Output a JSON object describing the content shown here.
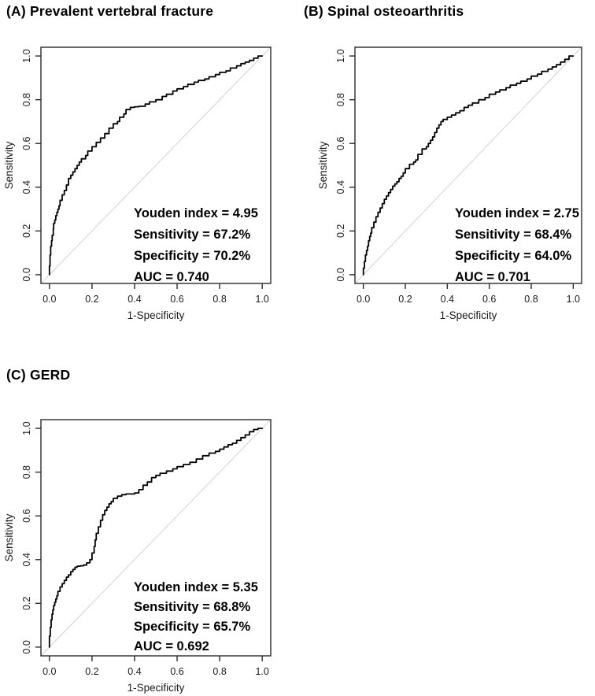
{
  "figure": {
    "background": "#ffffff"
  },
  "style": {
    "curve_color": "#000000",
    "diagonal_color": "#d2d2d2",
    "axis_color": "#2b2b2b",
    "text_color": "#1a1a1a",
    "tick_font_size": 12.5,
    "axis_label_font_size": 13.5
  },
  "chart_data": [
    {
      "id": "A",
      "type": "line",
      "title": "(A) Prevalent vertebral fracture",
      "xlabel": "1-Specificity",
      "ylabel": "Sensitivity",
      "xlim": [
        0,
        1
      ],
      "ylim": [
        0,
        1
      ],
      "xticks": [
        0.0,
        0.2,
        0.4,
        0.6,
        0.8,
        1.0
      ],
      "yticks": [
        0.0,
        0.2,
        0.4,
        0.6,
        0.8,
        1.0
      ],
      "grid": false,
      "diagonal_reference": true,
      "stats": {
        "youden_index": "4.95",
        "sensitivity": "67.2%",
        "specificity": "70.2%",
        "auc": "0.740"
      },
      "annotation_lines": [
        "Youden index = 4.95",
        "Sensitivity = 67.2%",
        "Specificity = 70.2%",
        "AUC = 0.740"
      ],
      "series": [
        {
          "name": "ROC curve",
          "color": "#000000",
          "points": [
            [
              0,
              0
            ],
            [
              0.003,
              0.04
            ],
            [
              0.006,
              0.09
            ],
            [
              0.01,
              0.13
            ],
            [
              0.013,
              0.155
            ],
            [
              0.018,
              0.18
            ],
            [
              0.02,
              0.21
            ],
            [
              0.025,
              0.235
            ],
            [
              0.03,
              0.25
            ],
            [
              0.035,
              0.27
            ],
            [
              0.04,
              0.285
            ],
            [
              0.045,
              0.3
            ],
            [
              0.05,
              0.315
            ],
            [
              0.06,
              0.34
            ],
            [
              0.07,
              0.365
            ],
            [
              0.08,
              0.385
            ],
            [
              0.09,
              0.41
            ],
            [
              0.1,
              0.44
            ],
            [
              0.11,
              0.455
            ],
            [
              0.12,
              0.47
            ],
            [
              0.13,
              0.485
            ],
            [
              0.14,
              0.5
            ],
            [
              0.15,
              0.515
            ],
            [
              0.17,
              0.53
            ],
            [
              0.18,
              0.545
            ],
            [
              0.2,
              0.565
            ],
            [
              0.22,
              0.585
            ],
            [
              0.24,
              0.605
            ],
            [
              0.26,
              0.625
            ],
            [
              0.28,
              0.645
            ],
            [
              0.3,
              0.67
            ],
            [
              0.32,
              0.69
            ],
            [
              0.33,
              0.7
            ],
            [
              0.35,
              0.72
            ],
            [
              0.36,
              0.735
            ],
            [
              0.38,
              0.755
            ],
            [
              0.4,
              0.765
            ],
            [
              0.42,
              0.768
            ],
            [
              0.45,
              0.77
            ],
            [
              0.47,
              0.78
            ],
            [
              0.5,
              0.79
            ],
            [
              0.53,
              0.8
            ],
            [
              0.55,
              0.815
            ],
            [
              0.58,
              0.825
            ],
            [
              0.6,
              0.84
            ],
            [
              0.63,
              0.85
            ],
            [
              0.65,
              0.86
            ],
            [
              0.68,
              0.87
            ],
            [
              0.7,
              0.88
            ],
            [
              0.73,
              0.888
            ],
            [
              0.75,
              0.895
            ],
            [
              0.78,
              0.905
            ],
            [
              0.8,
              0.915
            ],
            [
              0.83,
              0.925
            ],
            [
              0.85,
              0.932
            ],
            [
              0.88,
              0.945
            ],
            [
              0.9,
              0.955
            ],
            [
              0.92,
              0.965
            ],
            [
              0.94,
              0.972
            ],
            [
              0.96,
              0.98
            ],
            [
              0.98,
              0.99
            ],
            [
              1,
              1
            ]
          ]
        }
      ]
    },
    {
      "id": "B",
      "type": "line",
      "title": "(B) Spinal osteoarthritis",
      "xlabel": "1-Specificity",
      "ylabel": "Sensitivity",
      "xlim": [
        0,
        1
      ],
      "ylim": [
        0,
        1
      ],
      "xticks": [
        0.0,
        0.2,
        0.4,
        0.6,
        0.8,
        1.0
      ],
      "yticks": [
        0.0,
        0.2,
        0.4,
        0.6,
        0.8,
        1.0
      ],
      "grid": false,
      "diagonal_reference": true,
      "stats": {
        "youden_index": "2.75",
        "sensitivity": "68.4%",
        "specificity": "64.0%",
        "auc": "0.701"
      },
      "annotation_lines": [
        "Youden index = 2.75",
        "Sensitivity = 68.4%",
        "Specificity = 64.0%",
        "AUC = 0.701"
      ],
      "series": [
        {
          "name": "ROC curve",
          "color": "#000000",
          "points": [
            [
              0,
              0
            ],
            [
              0.005,
              0.03
            ],
            [
              0.01,
              0.06
            ],
            [
              0.015,
              0.09
            ],
            [
              0.02,
              0.11
            ],
            [
              0.025,
              0.13
            ],
            [
              0.03,
              0.155
            ],
            [
              0.035,
              0.175
            ],
            [
              0.04,
              0.19
            ],
            [
              0.05,
              0.215
            ],
            [
              0.06,
              0.24
            ],
            [
              0.07,
              0.265
            ],
            [
              0.08,
              0.285
            ],
            [
              0.09,
              0.305
            ],
            [
              0.1,
              0.325
            ],
            [
              0.11,
              0.345
            ],
            [
              0.12,
              0.36
            ],
            [
              0.13,
              0.375
            ],
            [
              0.14,
              0.39
            ],
            [
              0.15,
              0.405
            ],
            [
              0.16,
              0.415
            ],
            [
              0.17,
              0.425
            ],
            [
              0.18,
              0.44
            ],
            [
              0.19,
              0.45
            ],
            [
              0.2,
              0.465
            ],
            [
              0.22,
              0.485
            ],
            [
              0.24,
              0.505
            ],
            [
              0.25,
              0.515
            ],
            [
              0.26,
              0.525
            ],
            [
              0.28,
              0.55
            ],
            [
              0.3,
              0.575
            ],
            [
              0.31,
              0.585
            ],
            [
              0.32,
              0.6
            ],
            [
              0.33,
              0.615
            ],
            [
              0.34,
              0.63
            ],
            [
              0.35,
              0.65
            ],
            [
              0.36,
              0.67
            ],
            [
              0.37,
              0.685
            ],
            [
              0.38,
              0.7
            ],
            [
              0.4,
              0.71
            ],
            [
              0.42,
              0.72
            ],
            [
              0.44,
              0.73
            ],
            [
              0.46,
              0.74
            ],
            [
              0.48,
              0.75
            ],
            [
              0.5,
              0.765
            ],
            [
              0.52,
              0.775
            ],
            [
              0.55,
              0.785
            ],
            [
              0.58,
              0.8
            ],
            [
              0.6,
              0.81
            ],
            [
              0.63,
              0.825
            ],
            [
              0.65,
              0.835
            ],
            [
              0.68,
              0.845
            ],
            [
              0.7,
              0.855
            ],
            [
              0.73,
              0.867
            ],
            [
              0.75,
              0.875
            ],
            [
              0.78,
              0.885
            ],
            [
              0.8,
              0.895
            ],
            [
              0.83,
              0.908
            ],
            [
              0.85,
              0.917
            ],
            [
              0.88,
              0.93
            ],
            [
              0.9,
              0.94
            ],
            [
              0.92,
              0.95
            ],
            [
              0.94,
              0.96
            ],
            [
              0.96,
              0.972
            ],
            [
              0.98,
              0.985
            ],
            [
              1,
              1
            ]
          ]
        }
      ]
    },
    {
      "id": "C",
      "type": "line",
      "title": "(C) GERD",
      "xlabel": "1-Specificity",
      "ylabel": "Sensitivity",
      "xlim": [
        0,
        1
      ],
      "ylim": [
        0,
        1
      ],
      "xticks": [
        0.0,
        0.2,
        0.4,
        0.6,
        0.8,
        1.0
      ],
      "yticks": [
        0.0,
        0.2,
        0.4,
        0.6,
        0.8,
        1.0
      ],
      "grid": false,
      "diagonal_reference": true,
      "stats": {
        "youden_index": "5.35",
        "sensitivity": "68.8%",
        "specificity": "65.7%",
        "auc": "0.692"
      },
      "annotation_lines": [
        "Youden index = 5.35",
        "Sensitivity = 68.8%",
        "Specificity = 65.7%",
        "AUC = 0.692"
      ],
      "series": [
        {
          "name": "ROC curve",
          "color": "#000000",
          "points": [
            [
              0,
              0
            ],
            [
              0.004,
              0.05
            ],
            [
              0.008,
              0.09
            ],
            [
              0.012,
              0.125
            ],
            [
              0.016,
              0.15
            ],
            [
              0.02,
              0.17
            ],
            [
              0.025,
              0.19
            ],
            [
              0.03,
              0.205
            ],
            [
              0.035,
              0.22
            ],
            [
              0.04,
              0.235
            ],
            [
              0.05,
              0.255
            ],
            [
              0.06,
              0.275
            ],
            [
              0.07,
              0.29
            ],
            [
              0.08,
              0.305
            ],
            [
              0.09,
              0.32
            ],
            [
              0.1,
              0.33
            ],
            [
              0.11,
              0.345
            ],
            [
              0.12,
              0.355
            ],
            [
              0.13,
              0.365
            ],
            [
              0.145,
              0.37
            ],
            [
              0.16,
              0.372
            ],
            [
              0.175,
              0.375
            ],
            [
              0.19,
              0.385
            ],
            [
              0.2,
              0.4
            ],
            [
              0.21,
              0.43
            ],
            [
              0.215,
              0.46
            ],
            [
              0.22,
              0.49
            ],
            [
              0.23,
              0.52
            ],
            [
              0.24,
              0.55
            ],
            [
              0.25,
              0.58
            ],
            [
              0.26,
              0.605
            ],
            [
              0.27,
              0.625
            ],
            [
              0.28,
              0.64
            ],
            [
              0.29,
              0.655
            ],
            [
              0.3,
              0.665
            ],
            [
              0.32,
              0.68
            ],
            [
              0.34,
              0.69
            ],
            [
              0.36,
              0.697
            ],
            [
              0.38,
              0.7
            ],
            [
              0.4,
              0.7
            ],
            [
              0.42,
              0.705
            ],
            [
              0.44,
              0.72
            ],
            [
              0.46,
              0.74
            ],
            [
              0.48,
              0.755
            ],
            [
              0.5,
              0.775
            ],
            [
              0.52,
              0.785
            ],
            [
              0.55,
              0.795
            ],
            [
              0.58,
              0.805
            ],
            [
              0.6,
              0.815
            ],
            [
              0.63,
              0.825
            ],
            [
              0.66,
              0.835
            ],
            [
              0.69,
              0.845
            ],
            [
              0.72,
              0.86
            ],
            [
              0.75,
              0.875
            ],
            [
              0.78,
              0.887
            ],
            [
              0.8,
              0.895
            ],
            [
              0.82,
              0.905
            ],
            [
              0.84,
              0.915
            ],
            [
              0.86,
              0.925
            ],
            [
              0.88,
              0.932
            ],
            [
              0.9,
              0.945
            ],
            [
              0.92,
              0.958
            ],
            [
              0.94,
              0.97
            ],
            [
              0.96,
              0.985
            ],
            [
              0.98,
              0.995
            ],
            [
              1,
              1
            ]
          ]
        }
      ]
    }
  ]
}
